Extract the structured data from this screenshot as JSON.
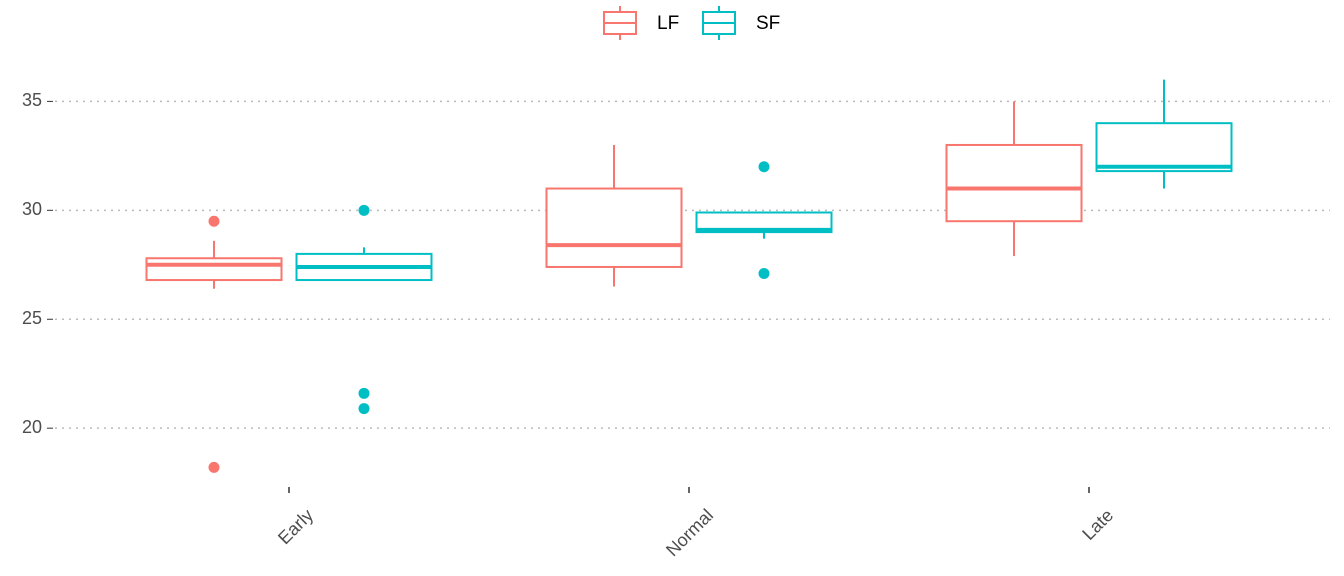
{
  "chart_data": {
    "type": "box",
    "categories": [
      "Early",
      "Normal",
      "Late"
    ],
    "ylim": [
      17.3,
      36.9
    ],
    "yticks": [
      20,
      25,
      30,
      35
    ],
    "grid": true,
    "legend": "top",
    "series": [
      {
        "name": "LF",
        "color": "#F8766D",
        "values": [
          {
            "lower": 26.4,
            "q1": 26.8,
            "median": 27.5,
            "q3": 27.8,
            "upper": 28.6,
            "outliers": [
              29.5,
              18.2
            ]
          },
          {
            "lower": 26.5,
            "q1": 27.4,
            "median": 28.4,
            "q3": 31.0,
            "upper": 33.0,
            "outliers": []
          },
          {
            "lower": 27.9,
            "q1": 29.5,
            "median": 31.0,
            "q3": 33.0,
            "upper": 35.0,
            "outliers": []
          }
        ]
      },
      {
        "name": "SF",
        "color": "#00BFC4",
        "values": [
          {
            "lower": 26.8,
            "q1": 26.8,
            "median": 27.4,
            "q3": 28.0,
            "upper": 28.3,
            "outliers": [
              30.0,
              21.6,
              20.9
            ]
          },
          {
            "lower": 28.7,
            "q1": 29.0,
            "median": 29.1,
            "q3": 29.9,
            "upper": 29.9,
            "outliers": [
              32.0,
              27.1
            ]
          },
          {
            "lower": 31.0,
            "q1": 31.8,
            "median": 32.0,
            "q3": 34.0,
            "upper": 36.0,
            "outliers": []
          }
        ]
      }
    ]
  }
}
